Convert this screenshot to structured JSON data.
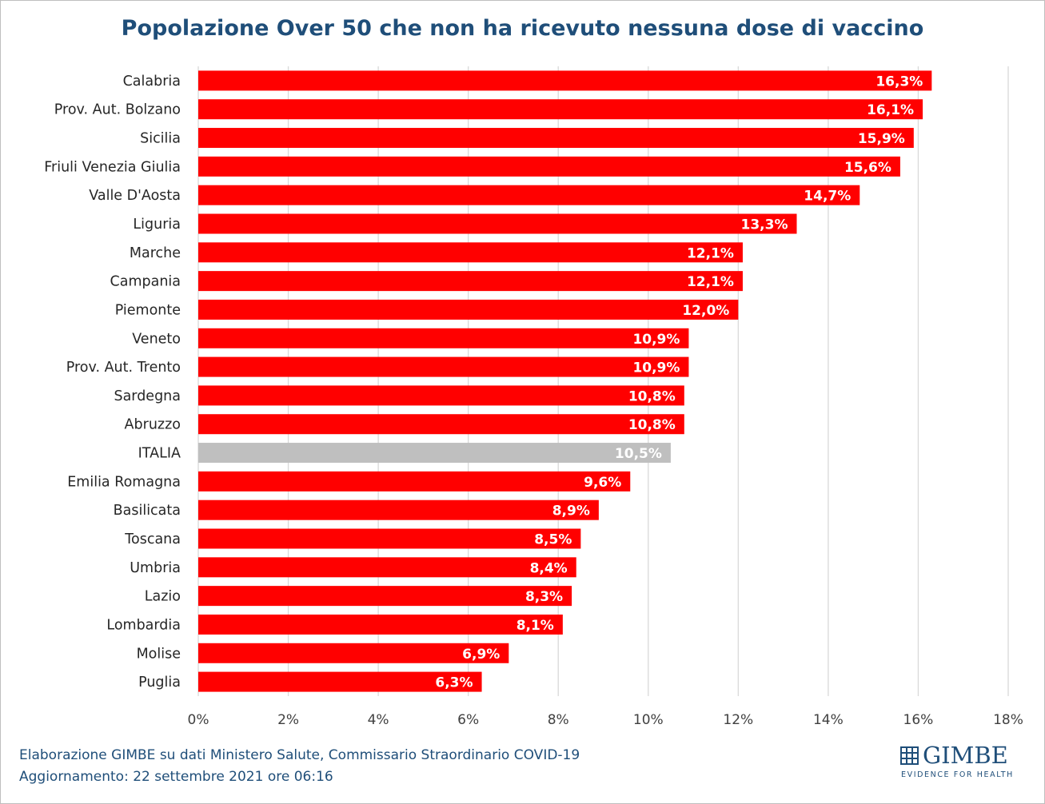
{
  "title": "Popolazione Over 50 che non ha ricevuto nessuna dose di vaccino",
  "footer": {
    "line1": "Elaborazione GIMBE su dati Ministero Salute, Commissario Straordinario COVID-19",
    "line2": "Aggiornamento: 22 settembre 2021 ore 06:16"
  },
  "logo": {
    "name": "GIMBE",
    "tagline": "EVIDENCE FOR HEALTH"
  },
  "colors": {
    "bar": "#ff0000",
    "highlight": "#bfbfbf",
    "title": "#1f4e79",
    "grid": "#d9d9d9"
  },
  "chart_data": {
    "type": "bar",
    "orientation": "horizontal",
    "title": "Popolazione Over 50 che non ha ricevuto nessuna dose di vaccino",
    "categories": [
      "Calabria",
      "Prov. Aut. Bolzano",
      "Sicilia",
      "Friuli Venezia Giulia",
      "Valle D'Aosta",
      "Liguria",
      "Marche",
      "Campania",
      "Piemonte",
      "Veneto",
      "Prov. Aut. Trento",
      "Sardegna",
      "Abruzzo",
      "ITALIA",
      "Emilia Romagna",
      "Basilicata",
      "Toscana",
      "Umbria",
      "Lazio",
      "Lombardia",
      "Molise",
      "Puglia"
    ],
    "values": [
      16.3,
      16.1,
      15.9,
      15.6,
      14.7,
      13.3,
      12.1,
      12.1,
      12.0,
      10.9,
      10.9,
      10.8,
      10.8,
      10.5,
      9.6,
      8.9,
      8.5,
      8.4,
      8.3,
      8.1,
      6.9,
      6.3
    ],
    "value_labels": [
      "16,3%",
      "16,1%",
      "15,9%",
      "15,6%",
      "14,7%",
      "13,3%",
      "12,1%",
      "12,1%",
      "12,0%",
      "10,9%",
      "10,9%",
      "10,8%",
      "10,8%",
      "10,5%",
      "9,6%",
      "8,9%",
      "8,5%",
      "8,4%",
      "8,3%",
      "8,1%",
      "6,9%",
      "6,3%"
    ],
    "highlight_category": "ITALIA",
    "xlim": [
      0,
      18
    ],
    "xticks": [
      0,
      2,
      4,
      6,
      8,
      10,
      12,
      14,
      16,
      18
    ],
    "xtick_labels": [
      "0%",
      "2%",
      "4%",
      "6%",
      "8%",
      "10%",
      "12%",
      "14%",
      "16%",
      "18%"
    ],
    "grid": true,
    "legend": "none"
  }
}
